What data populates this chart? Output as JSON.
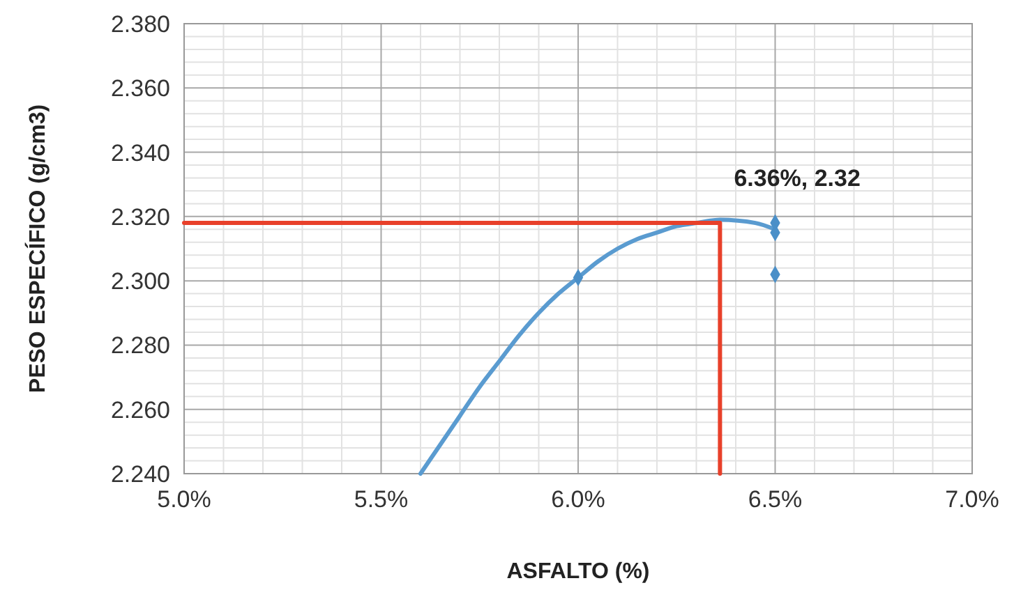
{
  "chart_data": {
    "type": "scatter",
    "xlabel": "ASFALTO (%)",
    "ylabel": "PESO ESPECÍFICO (g/cm3)",
    "xlim": [
      5.0,
      7.0
    ],
    "ylim": [
      2.24,
      2.38
    ],
    "xticks": [
      {
        "value": 5.0,
        "label": "5.0%"
      },
      {
        "value": 5.5,
        "label": "5.5%"
      },
      {
        "value": 6.0,
        "label": "6.0%"
      },
      {
        "value": 6.5,
        "label": "6.5%"
      },
      {
        "value": 7.0,
        "label": "7.0%"
      }
    ],
    "yticks": [
      {
        "value": 2.24,
        "label": "2.240"
      },
      {
        "value": 2.26,
        "label": "2.260"
      },
      {
        "value": 2.28,
        "label": "2.280"
      },
      {
        "value": 2.3,
        "label": "2.300"
      },
      {
        "value": 2.32,
        "label": "2.320"
      },
      {
        "value": 2.34,
        "label": "2.340"
      },
      {
        "value": 2.36,
        "label": "2.360"
      },
      {
        "value": 2.38,
        "label": "2.380"
      }
    ],
    "grid": true,
    "series": [
      {
        "type": "line",
        "color": "#5a9bd0",
        "marker": "none",
        "line_style": "solid",
        "x": [
          5.6,
          5.65,
          5.7,
          5.75,
          5.8,
          5.85,
          5.9,
          5.95,
          6.0,
          6.05,
          6.1,
          6.15,
          6.2,
          6.25,
          6.3,
          6.36,
          6.45,
          6.5
        ],
        "values": [
          2.24,
          2.249,
          2.258,
          2.267,
          2.275,
          2.283,
          2.29,
          2.296,
          2.301,
          2.306,
          2.31,
          2.313,
          2.315,
          2.317,
          2.318,
          2.319,
          2.318,
          2.316
        ]
      },
      {
        "color": "#4a8fc8",
        "marker": "diamond",
        "x": [
          6.0,
          6.5,
          6.5,
          6.5
        ],
        "values": [
          2.301,
          2.318,
          2.315,
          2.302
        ]
      },
      {
        "type": "line",
        "color": "#e8402a",
        "marker": "none",
        "line_style": "solid",
        "x": [
          5.0,
          6.36,
          6.36
        ],
        "values": [
          2.318,
          2.318,
          2.24
        ]
      }
    ],
    "annotations": [
      {
        "text": "6.36%, 2.32",
        "x": 6.36,
        "y": 2.32
      }
    ]
  }
}
